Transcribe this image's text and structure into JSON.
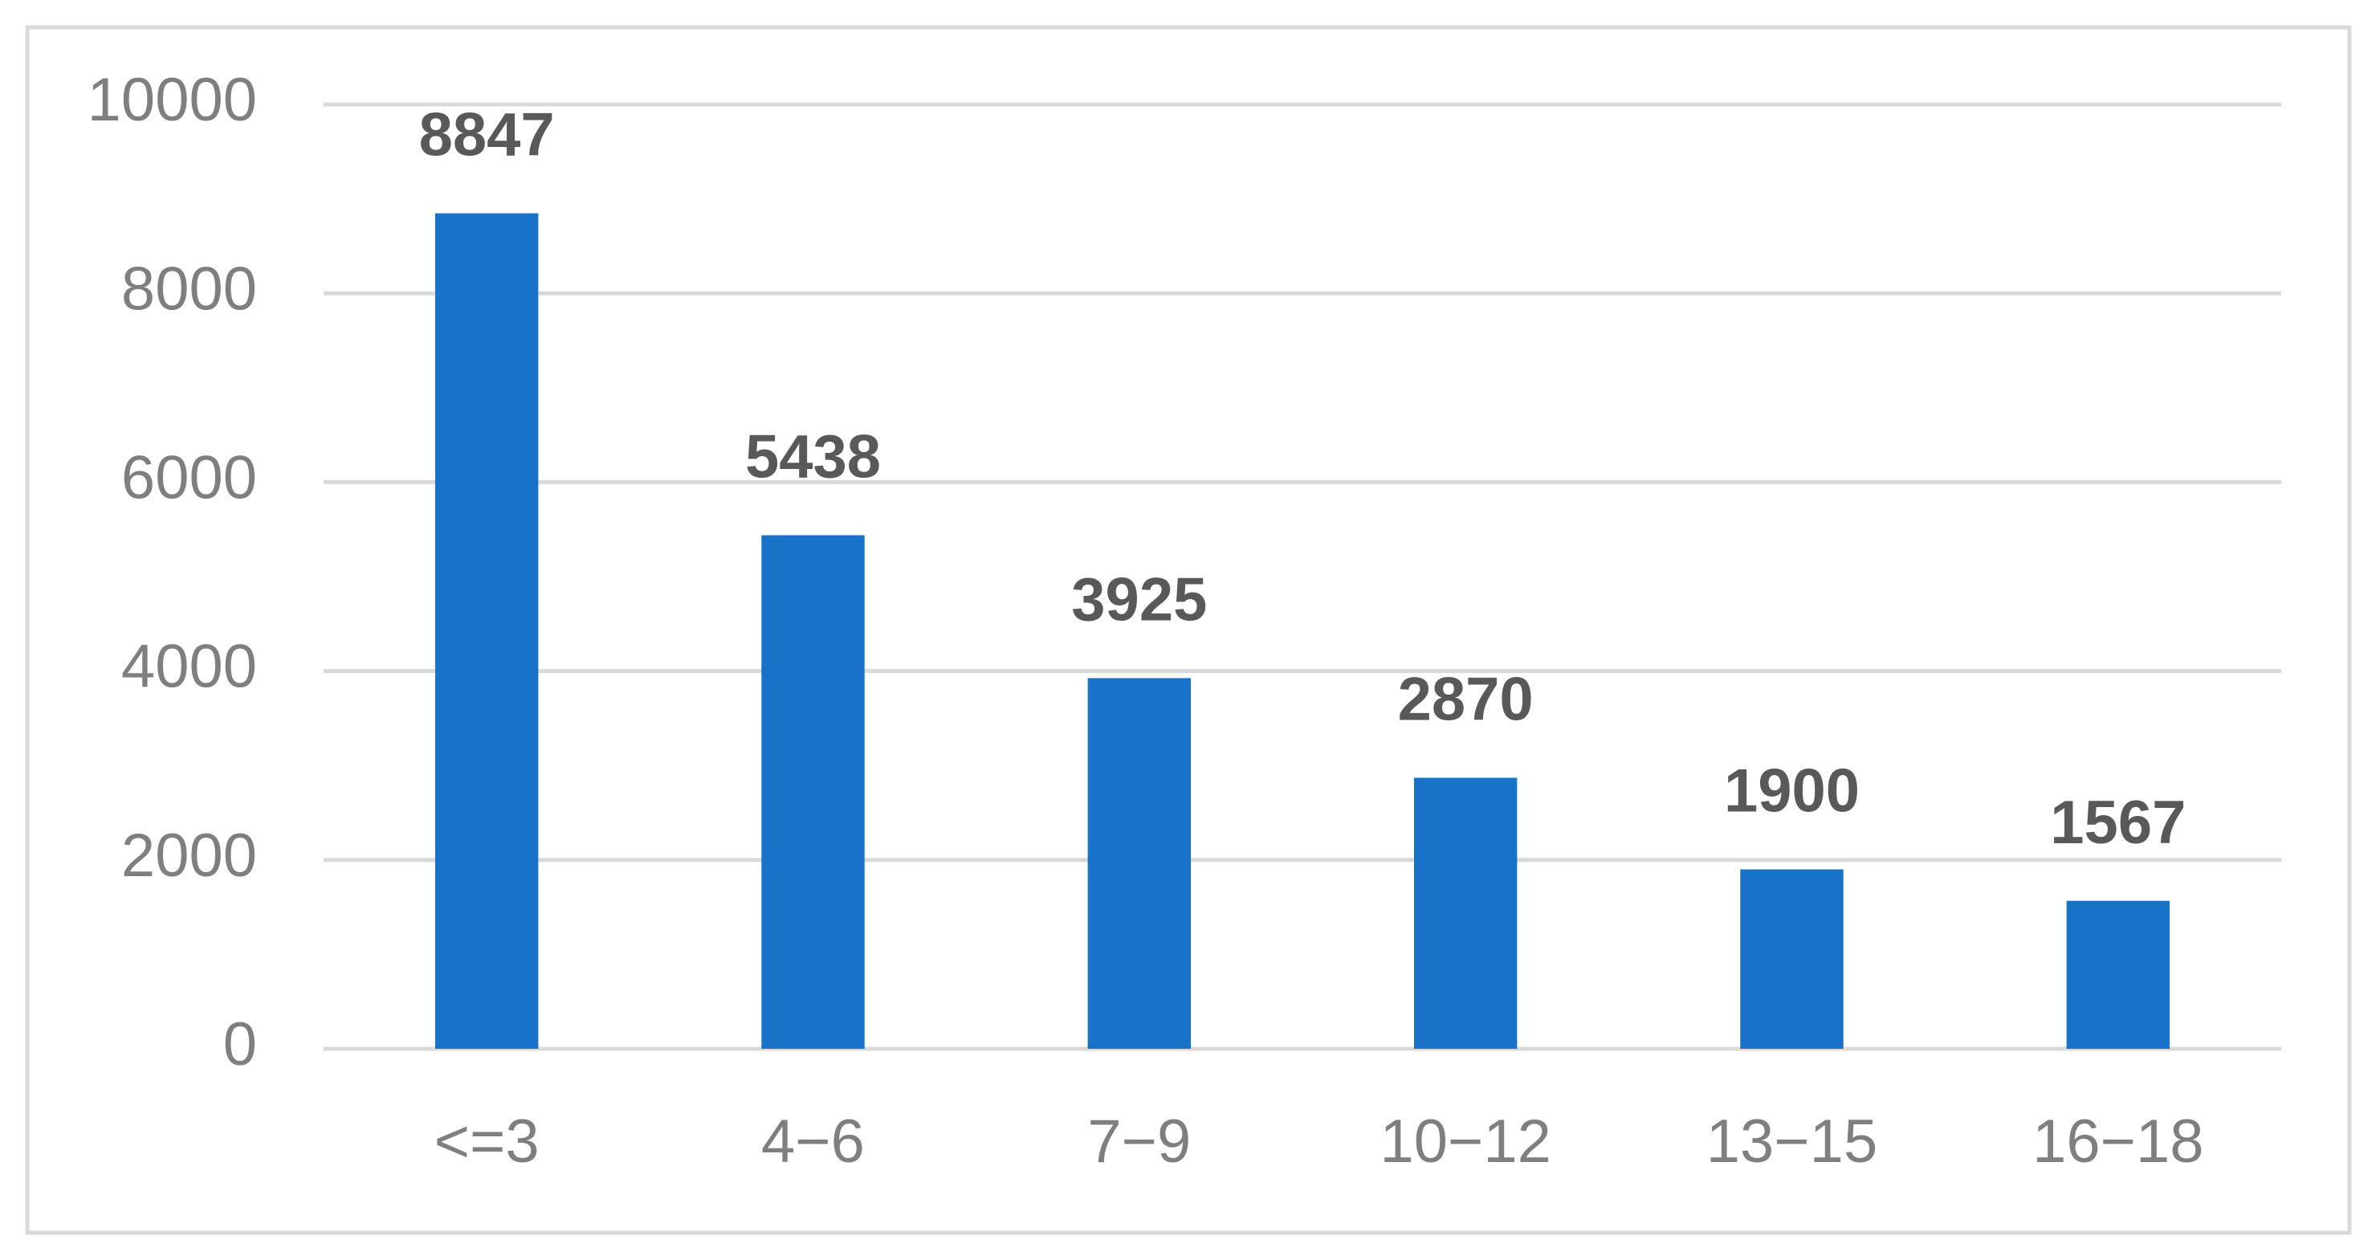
{
  "chart_data": {
    "type": "bar",
    "categories": [
      "<=3",
      "4−6",
      "7−9",
      "10−12",
      "13−15",
      "16−18"
    ],
    "values": [
      8847,
      5438,
      3925,
      2870,
      1900,
      1567
    ],
    "color": "#1872c8",
    "ylim": [
      0,
      10000
    ],
    "yticks": [
      0,
      2000,
      4000,
      6000,
      8000,
      10000
    ],
    "grid": true
  }
}
